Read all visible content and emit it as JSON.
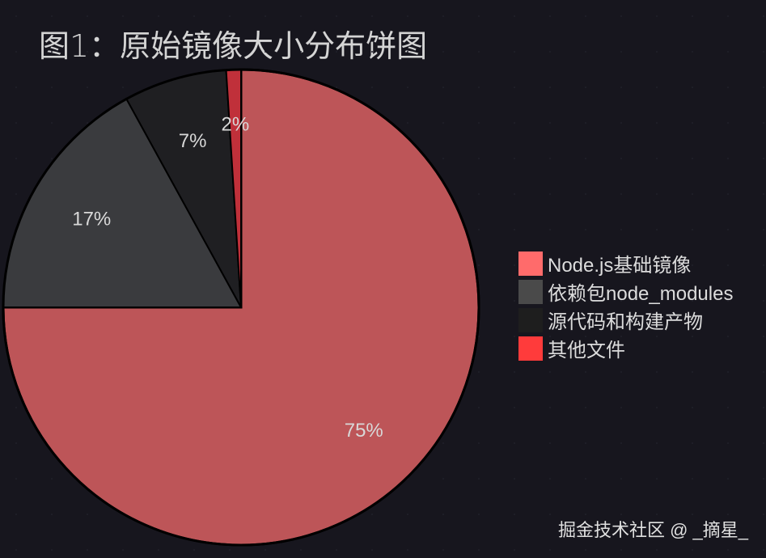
{
  "chart_data": {
    "type": "pie",
    "title": "图1：原始镜像大小分布饼图",
    "start": "top",
    "direction": "clockwise",
    "legend_position": "right",
    "slices": [
      {
        "label": "Node.js基础镜像",
        "value": 75,
        "data_label": "75%",
        "color": "#bd5558",
        "legend_color": "#ff6b6b"
      },
      {
        "label": "依赖包node_modules",
        "value": 17,
        "data_label": "17%",
        "color": "#3a3b3e",
        "legend_color": "#4a4a4a"
      },
      {
        "label": "源代码和构建产物",
        "value": 7,
        "data_label": "7%",
        "color": "#1f1f22",
        "legend_color": "#1e1e1e"
      },
      {
        "label": "其他文件",
        "value": 2,
        "data_label": "2%",
        "color": "#c0303a",
        "legend_color": "#ff3b3b"
      }
    ]
  },
  "watermark": "掘金技术社区 @ _摘星_"
}
